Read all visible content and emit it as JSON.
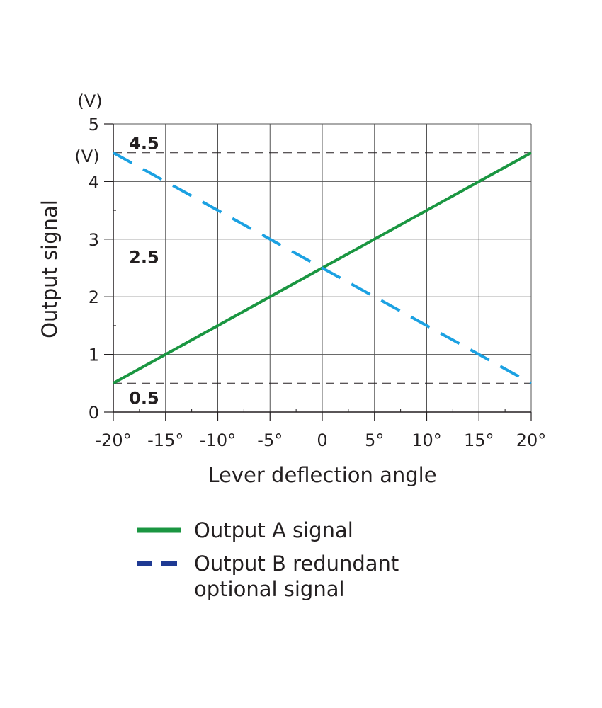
{
  "chart_data": {
    "type": "line",
    "xlabel": "Lever deflection angle",
    "ylabel": "Output signal",
    "y_unit": "(V)",
    "y_unit_secondary": "(V)",
    "xlim": [
      -20,
      20
    ],
    "ylim": [
      0,
      5
    ],
    "x_ticks": [
      -20,
      -15,
      -10,
      -5,
      0,
      5,
      10,
      15,
      20
    ],
    "x_tick_labels": [
      "-20°",
      "-15°",
      "-10°",
      "-5°",
      "0",
      "5°",
      "10°",
      "15°",
      "20°"
    ],
    "y_ticks": [
      0,
      1,
      2,
      3,
      4,
      5
    ],
    "y_tick_labels": [
      "0",
      "1",
      "2",
      "3",
      "4",
      "5"
    ],
    "grid": true,
    "reference_lines": [
      {
        "y": 4.5,
        "label": "4.5"
      },
      {
        "y": 2.5,
        "label": "2.5"
      },
      {
        "y": 0.5,
        "label": "0.5"
      }
    ],
    "series": [
      {
        "name": "Output A signal",
        "x": [
          -20,
          20
        ],
        "y": [
          0.5,
          4.5
        ],
        "color": "#1a9641",
        "style": "solid"
      },
      {
        "name": "Output B redundant optional signal",
        "x": [
          -20,
          20
        ],
        "y": [
          4.5,
          0.5
        ],
        "color": "#1ba1e2",
        "style": "dashed"
      }
    ],
    "legend": {
      "placement": "bottom",
      "items": [
        {
          "label_line1": "Output A signal",
          "label_line2": "",
          "color": "#1a9641",
          "style": "solid"
        },
        {
          "label_line1": "Output B redundant",
          "label_line2": "optional signal",
          "color": "#1f3a93",
          "style": "dashed"
        }
      ]
    }
  }
}
